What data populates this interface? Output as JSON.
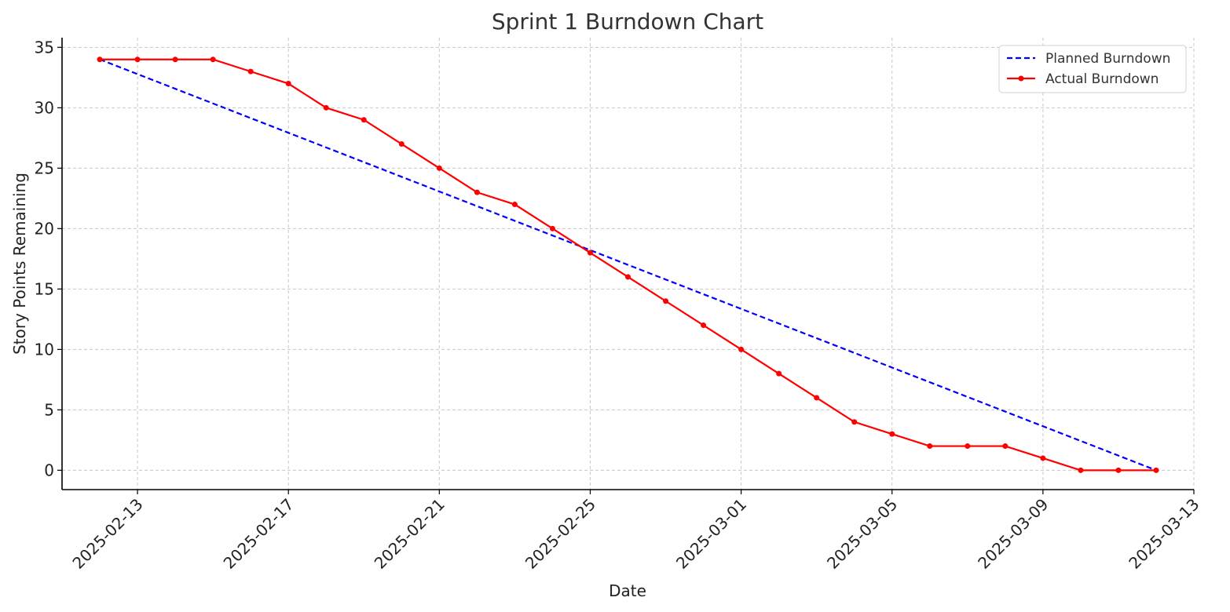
{
  "chart_data": {
    "type": "line",
    "title": "Sprint 1 Burndown Chart",
    "xlabel": "Date",
    "ylabel": "Story Points Remaining",
    "x_tick_labels": [
      "2025-02-13",
      "2025-02-17",
      "2025-02-21",
      "2025-02-25",
      "2025-03-01",
      "2025-03-05",
      "2025-03-09",
      "2025-03-13"
    ],
    "y_ticks": [
      0,
      5,
      10,
      15,
      20,
      25,
      30,
      35
    ],
    "xlim": [
      "2025-02-11",
      "2025-03-13"
    ],
    "ylim": [
      -1.6,
      35.8
    ],
    "grid": true,
    "legend_position": "top-right",
    "series": [
      {
        "name": "Planned Burndown",
        "style": "dashed",
        "color": "#0000ff",
        "x": [
          "2025-02-12",
          "2025-03-12"
        ],
        "values": [
          34,
          0
        ]
      },
      {
        "name": "Actual Burndown",
        "style": "solid-markers",
        "color": "#ff0000",
        "x": [
          "2025-02-12",
          "2025-02-13",
          "2025-02-14",
          "2025-02-15",
          "2025-02-16",
          "2025-02-17",
          "2025-02-18",
          "2025-02-19",
          "2025-02-20",
          "2025-02-21",
          "2025-02-22",
          "2025-02-23",
          "2025-02-24",
          "2025-02-25",
          "2025-02-26",
          "2025-02-27",
          "2025-02-28",
          "2025-03-01",
          "2025-03-02",
          "2025-03-03",
          "2025-03-04",
          "2025-03-05",
          "2025-03-06",
          "2025-03-07",
          "2025-03-08",
          "2025-03-09",
          "2025-03-10",
          "2025-03-11",
          "2025-03-12"
        ],
        "values": [
          34,
          34,
          34,
          34,
          33,
          32,
          30,
          29,
          27,
          25,
          23,
          22,
          20,
          18,
          16,
          14,
          12,
          10,
          8,
          6,
          4,
          3,
          2,
          2,
          2,
          1,
          0,
          0,
          0
        ]
      }
    ]
  }
}
